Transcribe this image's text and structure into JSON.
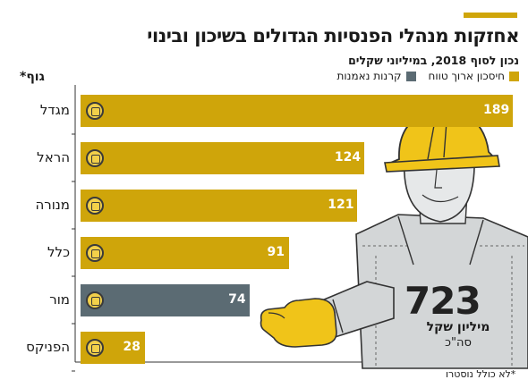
{
  "header": {
    "title": "אחזקות מנהלי הפנסיות הגדולים בשיכון ובינוי",
    "subtitle": "נכון לסוף 2018, במיליוני שקלים"
  },
  "legend": [
    {
      "label": "חיסכון ארוך טווח",
      "color": "#cfa50a"
    },
    {
      "label": "קרנות נאמנות",
      "color": "#5b6b73"
    }
  ],
  "axis_title": "גוף*",
  "footnote": "*לא כולל נוסטרו",
  "total": {
    "value": "723",
    "unit": "מיליון שקל",
    "note": "סה\"כ"
  },
  "chart_data": {
    "type": "bar",
    "orientation": "horizontal",
    "categories": [
      "מגדל",
      "הראל",
      "מנורה",
      "כלל",
      "מור",
      "הפניקס"
    ],
    "values": [
      189,
      124,
      121,
      91,
      74,
      28
    ],
    "bar_colors": [
      "#cfa50a",
      "#cfa50a",
      "#cfa50a",
      "#cfa50a",
      "#5b6b73",
      "#cfa50a"
    ],
    "value_labels": [
      "189",
      "124",
      "121",
      "91",
      "74",
      "28"
    ],
    "xlim": [
      0,
      189
    ]
  }
}
